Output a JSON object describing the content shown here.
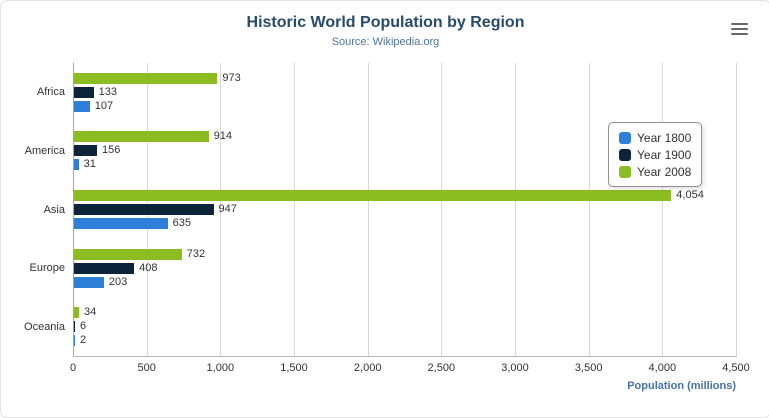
{
  "header": {
    "title": "Historic World Population by Region",
    "subtitle": "Source: Wikipedia.org"
  },
  "icons": {
    "export_menu": "hamburger-menu-icon"
  },
  "chart_data": {
    "type": "bar",
    "orientation": "horizontal",
    "categories": [
      "Africa",
      "America",
      "Asia",
      "Europe",
      "Oceania"
    ],
    "series": [
      {
        "name": "Year 1800",
        "color": "#2f7ed8",
        "values": [
          107,
          31,
          635,
          203,
          2
        ]
      },
      {
        "name": "Year 1900",
        "color": "#0d233a",
        "values": [
          133,
          156,
          947,
          408,
          6
        ]
      },
      {
        "name": "Year 2008",
        "color": "#8bbc21",
        "values": [
          973,
          914,
          4054,
          732,
          34
        ]
      }
    ],
    "bar_order_top_to_bottom": [
      "Year 2008",
      "Year 1900",
      "Year 1800"
    ],
    "xlabel": "Population (millions)",
    "ylabel": "",
    "xlim": [
      0,
      4500
    ],
    "xticks": [
      0,
      500,
      1000,
      1500,
      2000,
      2500,
      3000,
      3500,
      4000,
      4500
    ],
    "tick_labels": [
      "0",
      "500",
      "1,000",
      "1,500",
      "2,000",
      "2,500",
      "3,000",
      "3,500",
      "4,000",
      "4,500"
    ],
    "grid": true,
    "legend_position": "right",
    "data_labels": true
  }
}
